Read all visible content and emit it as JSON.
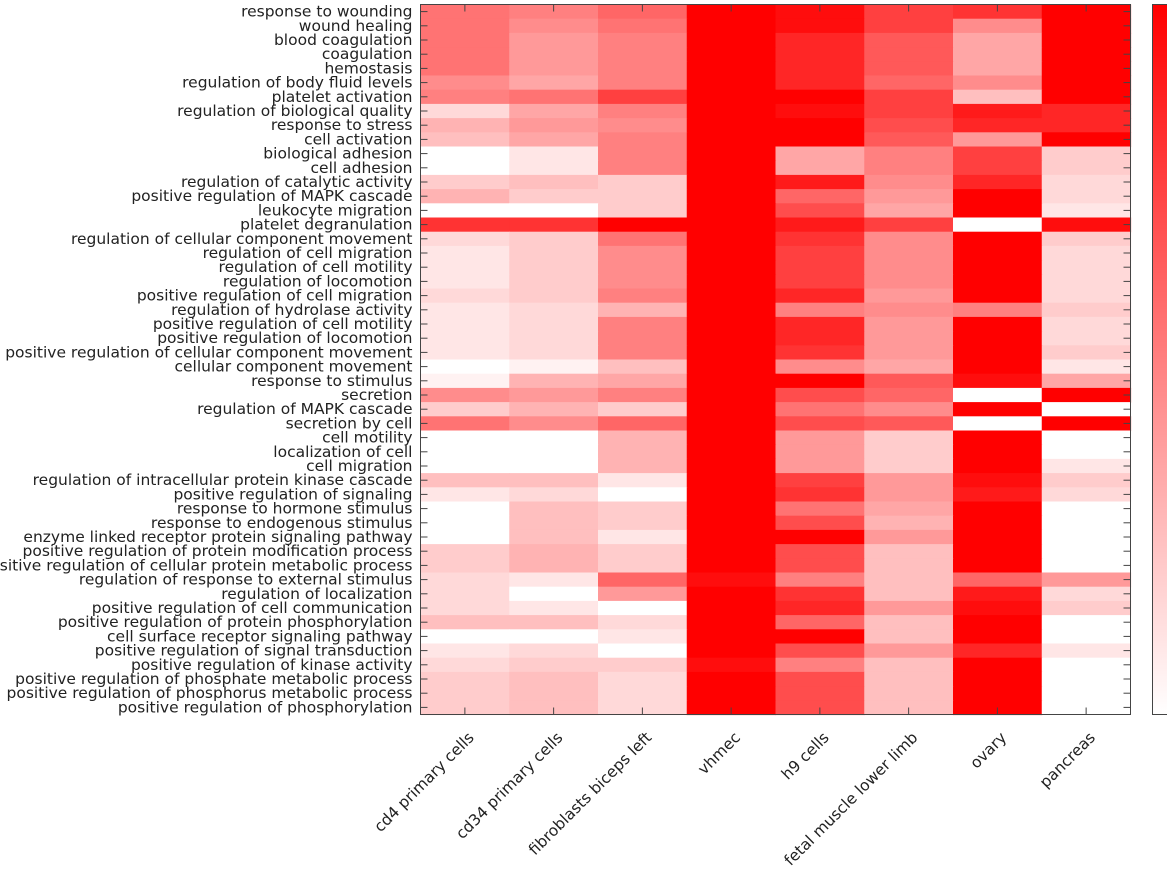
{
  "chart_data": {
    "type": "heatmap",
    "title": "",
    "xlabel": "",
    "ylabel": "",
    "color_low": "#ffffff",
    "color_high": "#ff0000",
    "value_range": [
      0,
      1
    ],
    "colorbar_tick_labels": [],
    "columns": [
      "cd4 primary cells",
      "cd34 primary cells",
      "fibroblasts biceps left",
      "vhmec",
      "h9 cells",
      "fetal muscle lower limb",
      "ovary",
      "pancreas"
    ],
    "rows": [
      "response to wounding",
      "wound healing",
      "blood coagulation",
      "coagulation",
      "hemostasis",
      "regulation of body fluid levels",
      "platelet activation",
      "regulation of biological quality",
      "response to stress",
      "cell activation",
      "biological adhesion",
      "cell adhesion",
      "regulation of catalytic activity",
      "positive regulation of MAPK cascade",
      "leukocyte migration",
      "platelet degranulation",
      "regulation of cellular component movement",
      "regulation of cell migration",
      "regulation of cell motility",
      "regulation of locomotion",
      "positive regulation of cell migration",
      "regulation of hydrolase activity",
      "positive regulation of cell motility",
      "positive regulation of locomotion",
      "positive regulation of cellular component movement",
      "cellular component movement",
      "response to stimulus",
      "secretion",
      "regulation of MAPK cascade",
      "secretion by cell",
      "cell motility",
      "localization of cell",
      "cell migration",
      "regulation of intracellular protein kinase cascade",
      "positive regulation of signaling",
      "response to hormone stimulus",
      "response to endogenous stimulus",
      "enzyme linked receptor protein signaling pathway",
      "positive regulation of protein modification process",
      "positive regulation of cellular protein metabolic process",
      "regulation of response to external stimulus",
      "regulation of localization",
      "positive regulation of cell communication",
      "positive regulation of protein phosphorylation",
      "cell surface receptor signaling pathway",
      "positive regulation of signal transduction",
      "positive regulation of kinase activity",
      "positive regulation of phosphate metabolic process",
      "positive regulation of phosphorus metabolic process",
      "positive regulation of phosphorylation"
    ],
    "values": [
      [
        0.55,
        0.5,
        0.6,
        1.0,
        0.95,
        0.75,
        0.8,
        1.0
      ],
      [
        0.55,
        0.45,
        0.55,
        1.0,
        0.95,
        0.75,
        0.45,
        1.0
      ],
      [
        0.55,
        0.4,
        0.5,
        1.0,
        0.85,
        0.65,
        0.35,
        1.0
      ],
      [
        0.55,
        0.4,
        0.5,
        1.0,
        0.85,
        0.65,
        0.35,
        1.0
      ],
      [
        0.55,
        0.4,
        0.5,
        1.0,
        0.85,
        0.65,
        0.35,
        1.0
      ],
      [
        0.45,
        0.35,
        0.5,
        1.0,
        0.85,
        0.6,
        0.45,
        1.0
      ],
      [
        0.5,
        0.55,
        0.75,
        1.0,
        1.0,
        0.75,
        0.25,
        1.0
      ],
      [
        0.15,
        0.35,
        0.5,
        1.0,
        0.95,
        0.75,
        0.9,
        0.85
      ],
      [
        0.3,
        0.4,
        0.45,
        1.0,
        1.0,
        0.7,
        0.85,
        0.85
      ],
      [
        0.25,
        0.35,
        0.5,
        1.0,
        1.0,
        0.65,
        0.4,
        1.0
      ],
      [
        0.0,
        0.1,
        0.5,
        1.0,
        0.35,
        0.5,
        0.75,
        0.2
      ],
      [
        0.0,
        0.1,
        0.5,
        1.0,
        0.35,
        0.5,
        0.75,
        0.2
      ],
      [
        0.2,
        0.25,
        0.2,
        1.0,
        0.9,
        0.45,
        0.85,
        0.15
      ],
      [
        0.3,
        0.2,
        0.2,
        1.0,
        0.6,
        0.4,
        1.0,
        0.15
      ],
      [
        0.0,
        0.0,
        0.2,
        1.0,
        0.7,
        0.35,
        1.0,
        0.1
      ],
      [
        0.8,
        0.8,
        1.0,
        1.0,
        0.9,
        0.75,
        0.0,
        0.95
      ],
      [
        0.15,
        0.2,
        0.55,
        1.0,
        0.8,
        0.45,
        1.0,
        0.2
      ],
      [
        0.1,
        0.2,
        0.45,
        1.0,
        0.75,
        0.45,
        1.0,
        0.15
      ],
      [
        0.1,
        0.2,
        0.45,
        1.0,
        0.75,
        0.45,
        1.0,
        0.15
      ],
      [
        0.1,
        0.2,
        0.45,
        1.0,
        0.75,
        0.45,
        1.0,
        0.15
      ],
      [
        0.15,
        0.2,
        0.5,
        1.0,
        0.85,
        0.4,
        1.0,
        0.15
      ],
      [
        0.1,
        0.15,
        0.3,
        1.0,
        0.5,
        0.45,
        0.5,
        0.2
      ],
      [
        0.1,
        0.15,
        0.5,
        1.0,
        0.85,
        0.4,
        1.0,
        0.15
      ],
      [
        0.1,
        0.15,
        0.5,
        1.0,
        0.85,
        0.4,
        1.0,
        0.15
      ],
      [
        0.1,
        0.15,
        0.5,
        1.0,
        0.8,
        0.4,
        1.0,
        0.2
      ],
      [
        0.0,
        0.05,
        0.25,
        1.0,
        0.45,
        0.35,
        1.0,
        0.1
      ],
      [
        0.05,
        0.3,
        0.35,
        1.0,
        1.0,
        0.65,
        0.95,
        0.35
      ],
      [
        0.45,
        0.4,
        0.5,
        1.0,
        0.7,
        0.6,
        0.0,
        1.0
      ],
      [
        0.2,
        0.3,
        0.2,
        1.0,
        0.55,
        0.45,
        1.0,
        0.0
      ],
      [
        0.55,
        0.45,
        0.6,
        1.0,
        0.7,
        0.65,
        0.0,
        1.0
      ],
      [
        0.0,
        0.0,
        0.3,
        1.0,
        0.4,
        0.2,
        1.0,
        0.0
      ],
      [
        0.0,
        0.0,
        0.3,
        1.0,
        0.4,
        0.2,
        1.0,
        0.0
      ],
      [
        0.0,
        0.0,
        0.3,
        1.0,
        0.4,
        0.2,
        1.0,
        0.1
      ],
      [
        0.25,
        0.25,
        0.1,
        1.0,
        0.75,
        0.4,
        0.95,
        0.2
      ],
      [
        0.1,
        0.15,
        0.0,
        1.0,
        0.8,
        0.4,
        0.9,
        0.15
      ],
      [
        0.0,
        0.25,
        0.2,
        1.0,
        0.55,
        0.35,
        1.0,
        0.0
      ],
      [
        0.0,
        0.25,
        0.2,
        1.0,
        0.7,
        0.3,
        1.0,
        0.0
      ],
      [
        0.0,
        0.25,
        0.1,
        1.0,
        1.0,
        0.4,
        1.0,
        0.0
      ],
      [
        0.2,
        0.3,
        0.2,
        1.0,
        0.7,
        0.25,
        1.0,
        0.0
      ],
      [
        0.2,
        0.3,
        0.2,
        1.0,
        0.7,
        0.25,
        1.0,
        0.0
      ],
      [
        0.15,
        0.1,
        0.6,
        0.95,
        0.5,
        0.25,
        0.6,
        0.4
      ],
      [
        0.15,
        0.0,
        0.4,
        1.0,
        0.8,
        0.25,
        0.9,
        0.15
      ],
      [
        0.15,
        0.1,
        0.0,
        1.0,
        0.85,
        0.4,
        0.95,
        0.2
      ],
      [
        0.25,
        0.25,
        0.15,
        1.0,
        0.6,
        0.25,
        1.0,
        0.0
      ],
      [
        0.0,
        0.0,
        0.1,
        1.0,
        1.0,
        0.25,
        1.0,
        0.0
      ],
      [
        0.1,
        0.15,
        0.0,
        1.0,
        0.7,
        0.4,
        0.85,
        0.1
      ],
      [
        0.15,
        0.2,
        0.2,
        0.95,
        0.5,
        0.25,
        1.0,
        0.0
      ],
      [
        0.2,
        0.25,
        0.15,
        1.0,
        0.7,
        0.25,
        1.0,
        0.0
      ],
      [
        0.2,
        0.25,
        0.15,
        1.0,
        0.7,
        0.25,
        1.0,
        0.0
      ],
      [
        0.2,
        0.25,
        0.15,
        1.0,
        0.7,
        0.25,
        1.0,
        0.0
      ]
    ]
  }
}
